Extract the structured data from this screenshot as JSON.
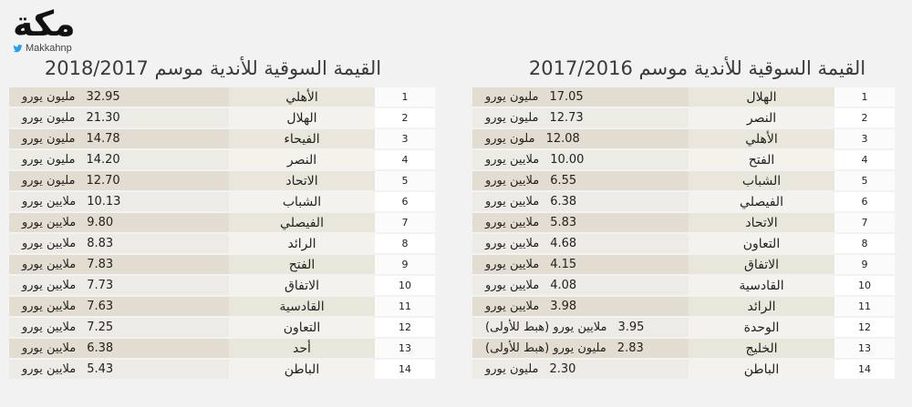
{
  "brand": {
    "logo_text": "مكة",
    "handle": "Makkahnp"
  },
  "left": {
    "title": "القيمة السوقية للأندية موسم 2018/2017",
    "rows": [
      {
        "rank": "1",
        "club": "الأهلي",
        "value": "32.95",
        "unit": "مليون يورو"
      },
      {
        "rank": "2",
        "club": "الهلال",
        "value": "21.30",
        "unit": "مليون يورو"
      },
      {
        "rank": "3",
        "club": "الفيحاء",
        "value": "14.78",
        "unit": "مليون يورو"
      },
      {
        "rank": "4",
        "club": "النصر",
        "value": "14.20",
        "unit": "مليون يورو"
      },
      {
        "rank": "5",
        "club": "الاتحاد",
        "value": "12.70",
        "unit": "مليون يورو"
      },
      {
        "rank": "6",
        "club": "الشباب",
        "value": "10.13",
        "unit": "ملايين يورو"
      },
      {
        "rank": "7",
        "club": "الفيصلي",
        "value": "9.80",
        "unit": "ملايين يورو"
      },
      {
        "rank": "8",
        "club": "الرائد",
        "value": "8.83",
        "unit": "ملايين يورو"
      },
      {
        "rank": "9",
        "club": "الفتح",
        "value": "7.83",
        "unit": "ملايين يورو"
      },
      {
        "rank": "10",
        "club": "الاتفاق",
        "value": "7.73",
        "unit": "ملايين يورو"
      },
      {
        "rank": "11",
        "club": "القادسية",
        "value": "7.63",
        "unit": "ملايين يورو"
      },
      {
        "rank": "12",
        "club": "التعاون",
        "value": "7.25",
        "unit": "ملايين يورو"
      },
      {
        "rank": "13",
        "club": "أحد",
        "value": "6.38",
        "unit": "ملايين يورو"
      },
      {
        "rank": "14",
        "club": "الباطن",
        "value": "5.43",
        "unit": "ملايين يورو"
      }
    ]
  },
  "right": {
    "title": "القيمة السوقية للأندية موسم 2017/2016",
    "rows": [
      {
        "rank": "1",
        "club": "الهلال",
        "value": "17.05",
        "unit": "مليون يورو"
      },
      {
        "rank": "2",
        "club": "النصر",
        "value": "12.73",
        "unit": "مليون يورو"
      },
      {
        "rank": "3",
        "club": "الأهلي",
        "value": "12.08",
        "unit": "ملون يورو"
      },
      {
        "rank": "4",
        "club": "الفتح",
        "value": "10.00",
        "unit": "ملايين يورو"
      },
      {
        "rank": "5",
        "club": "الشباب",
        "value": "6.55",
        "unit": "ملايين يورو"
      },
      {
        "rank": "6",
        "club": "الفيصلي",
        "value": "6.38",
        "unit": "ملايين يورو"
      },
      {
        "rank": "7",
        "club": "الاتحاد",
        "value": "5.83",
        "unit": "ملايين يورو"
      },
      {
        "rank": "8",
        "club": "التعاون",
        "value": "4.68",
        "unit": "ملايين يورو"
      },
      {
        "rank": "9",
        "club": "الاتفاق",
        "value": "4.15",
        "unit": "ملايين يورو"
      },
      {
        "rank": "10",
        "club": "القادسية",
        "value": "4.08",
        "unit": "ملايين يورو"
      },
      {
        "rank": "11",
        "club": "الرائد",
        "value": "3.98",
        "unit": "ملايين يورو"
      },
      {
        "rank": "12",
        "club": "الوحدة",
        "value": "3.95",
        "unit": "ملايين يورو (هبط للأولى)"
      },
      {
        "rank": "13",
        "club": "الخليج",
        "value": "2.83",
        "unit": "مليون يورو (هبط للأولى)"
      },
      {
        "rank": "14",
        "club": "الباطن",
        "value": "2.30",
        "unit": "مليون يورو"
      }
    ]
  }
}
